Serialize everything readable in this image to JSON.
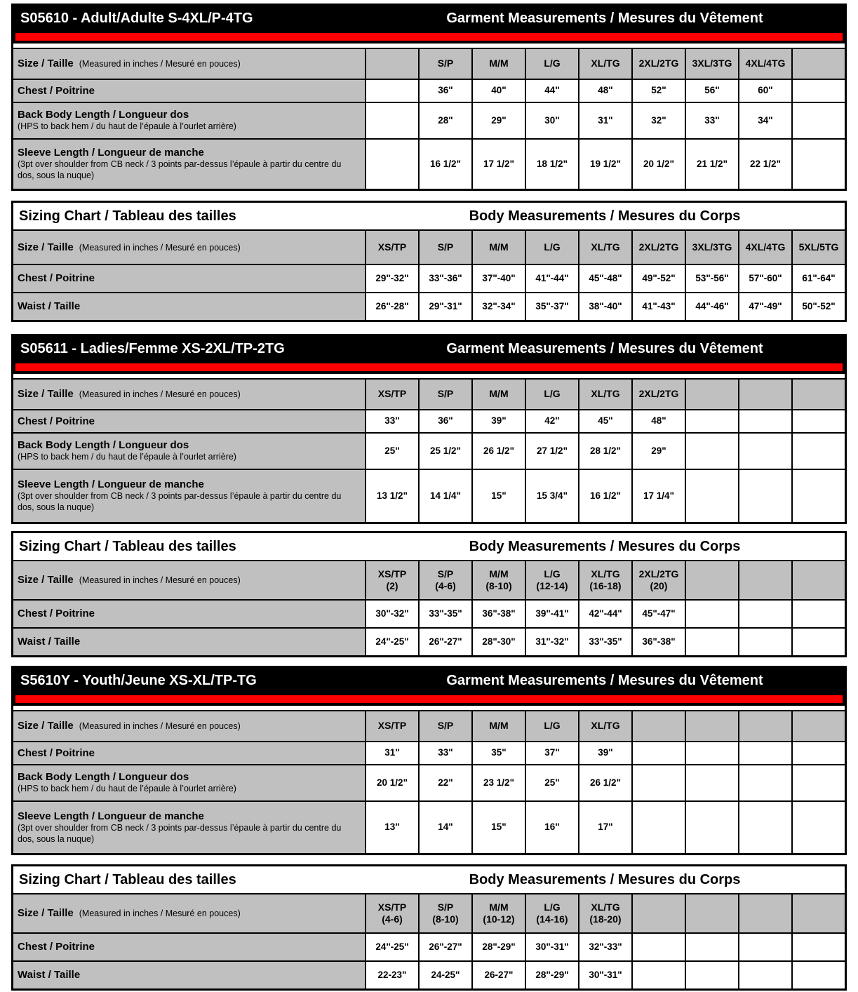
{
  "colors": {
    "header_bg": "#000000",
    "header_text": "#ffffff",
    "accent_red": "#ff0000",
    "cell_gray": "#c0c0c0",
    "cell_white": "#ffffff",
    "border": "#000000"
  },
  "tables": [
    {
      "kind": "garment",
      "name": "adult-garment",
      "title": "S05610 - Adult/Adulte S-4XL/P-4TG",
      "header_right": "Garment Measurements / Mesures du Vêtement",
      "size_label": "Size / Taille",
      "size_note": "(Measured in inches / Mesuré en pouces)",
      "columns": [
        "",
        "S/P",
        "M/M",
        "L/G",
        "XL/TG",
        "2XL/2TG",
        "3XL/3TG",
        "4XL/4TG",
        ""
      ],
      "rows": [
        {
          "type": "chest",
          "label": "Chest / Poitrine",
          "note": "",
          "values": [
            "",
            "36\"",
            "40\"",
            "44\"",
            "48\"",
            "52\"",
            "56\"",
            "60\"",
            ""
          ]
        },
        {
          "type": "bbl",
          "label": "Back Body Length / Longueur dos",
          "note": "(HPS to back hem / du haut de l’épaule à l’ourlet arrière)",
          "values": [
            "",
            "28\"",
            "29\"",
            "30\"",
            "31\"",
            "32\"",
            "33\"",
            "34\"",
            ""
          ]
        },
        {
          "type": "sleeve",
          "label": "Sleeve Length / Longueur de manche",
          "note": "(3pt over shoulder from CB neck / 3 points par-dessus l’épaule à partir du centre du dos, sous la nuque)",
          "values": [
            "",
            "16 1/2\"",
            "17 1/2\"",
            "18 1/2\"",
            "19 1/2\"",
            "20 1/2\"",
            "21 1/2\"",
            "22 1/2\"",
            ""
          ]
        }
      ]
    },
    {
      "kind": "body",
      "name": "adult-body",
      "title": "Sizing Chart / Tableau des tailles",
      "header_right": "Body Measurements / Mesures du Corps",
      "size_label": "Size / Taille",
      "size_note": "(Measured in inches / Mesuré en pouces)",
      "columns": [
        "XS/TP",
        "S/P",
        "M/M",
        "L/G",
        "XL/TG",
        "2XL/2TG",
        "3XL/3TG",
        "4XL/4TG",
        "5XL/5TG"
      ],
      "rows": [
        {
          "type": "chest",
          "label": "Chest / Poitrine",
          "note": "",
          "values": [
            "29\"-32\"",
            "33\"-36\"",
            "37\"-40\"",
            "41\"-44\"",
            "45\"-48\"",
            "49\"-52\"",
            "53\"-56\"",
            "57\"-60\"",
            "61\"-64\""
          ]
        },
        {
          "type": "waist",
          "label": "Waist / Taille",
          "note": "",
          "values": [
            "26\"-28\"",
            "29\"-31\"",
            "32\"-34\"",
            "35\"-37\"",
            "38\"-40\"",
            "41\"-43\"",
            "44\"-46\"",
            "47\"-49\"",
            "50\"-52\""
          ]
        }
      ]
    },
    {
      "kind": "garment",
      "name": "ladies-garment",
      "title": "S05611 - Ladies/Femme XS-2XL/TP-2TG",
      "header_right": "Garment Measurements / Mesures du Vêtement",
      "size_label": "Size / Taille",
      "size_note": "(Measured in inches / Mesuré en pouces)",
      "columns": [
        "XS/TP",
        "S/P",
        "M/M",
        "L/G",
        "XL/TG",
        "2XL/2TG",
        "",
        "",
        ""
      ],
      "rows": [
        {
          "type": "chest",
          "label": "Chest / Poitrine",
          "note": "",
          "values": [
            "33\"",
            "36\"",
            "39\"",
            "42\"",
            "45\"",
            "48\"",
            "",
            "",
            ""
          ]
        },
        {
          "type": "bbl",
          "label": "Back Body Length / Longueur dos",
          "note": "(HPS to back hem / du haut de l’épaule à l’ourlet arrière)",
          "values": [
            "25\"",
            "25 1/2\"",
            "26 1/2\"",
            "27 1/2\"",
            "28 1/2\"",
            "29\"",
            "",
            "",
            ""
          ]
        },
        {
          "type": "sleeve",
          "label": "Sleeve Length / Longueur de manche",
          "note": "(3pt over shoulder from CB neck / 3 points par-dessus l’épaule à partir du centre du dos, sous la nuque)",
          "values": [
            "13 1/2\"",
            "14 1/4\"",
            "15\"",
            "15 3/4\"",
            "16 1/2\"",
            "17 1/4\"",
            "",
            "",
            ""
          ]
        }
      ]
    },
    {
      "kind": "body",
      "name": "ladies-body",
      "title": "Sizing Chart / Tableau des tailles",
      "header_right": "Body Measurements / Mesures du Corps",
      "size_label": "Size / Taille",
      "size_note": "(Measured in inches / Mesuré en pouces)",
      "columns": [
        "XS/TP",
        "S/P",
        "M/M",
        "L/G",
        "XL/TG",
        "2XL/2TG",
        "",
        "",
        ""
      ],
      "columns_sub": [
        "(2)",
        "(4-6)",
        "(8-10)",
        "(12-14)",
        "(16-18)",
        "(20)",
        "",
        "",
        ""
      ],
      "rows": [
        {
          "type": "chest",
          "label": "Chest / Poitrine",
          "note": "",
          "values": [
            "30\"-32\"",
            "33\"-35\"",
            "36\"-38\"",
            "39\"-41\"",
            "42\"-44\"",
            "45\"-47\"",
            "",
            "",
            ""
          ]
        },
        {
          "type": "waist",
          "label": "Waist / Taille",
          "note": "",
          "values": [
            "24\"-25\"",
            "26\"-27\"",
            "28\"-30\"",
            "31\"-32\"",
            "33\"-35\"",
            "36\"-38\"",
            "",
            "",
            ""
          ]
        }
      ]
    },
    {
      "kind": "garment",
      "name": "youth-garment",
      "title": "S5610Y - Youth/Jeune XS-XL/TP-TG",
      "header_right": "Garment Measurements / Mesures du Vêtement",
      "size_label": "Size / Taille",
      "size_note": "(Measured in inches / Mesuré en pouces)",
      "columns": [
        "XS/TP",
        "S/P",
        "M/M",
        "L/G",
        "XL/TG",
        "",
        "",
        "",
        ""
      ],
      "rows": [
        {
          "type": "chest",
          "label": "Chest / Poitrine",
          "note": "",
          "values": [
            "31\"",
            "33\"",
            "35\"",
            "37\"",
            "39\"",
            "",
            "",
            "",
            ""
          ]
        },
        {
          "type": "bbl",
          "label": "Back Body Length / Longueur dos",
          "note": "(HPS to back hem / du haut de l’épaule à l’ourlet arrière)",
          "values": [
            "20 1/2\"",
            "22\"",
            "23 1/2\"",
            "25\"",
            "26 1/2\"",
            "",
            "",
            "",
            ""
          ]
        },
        {
          "type": "sleeve",
          "label": "Sleeve Length / Longueur de manche",
          "note": "(3pt over shoulder from CB neck / 3 points par-dessus l’épaule à partir du centre du dos, sous la nuque)",
          "values": [
            "13\"",
            "14\"",
            "15\"",
            "16\"",
            "17\"",
            "",
            "",
            "",
            ""
          ]
        }
      ]
    },
    {
      "kind": "body",
      "name": "youth-body",
      "title": "Sizing Chart / Tableau des tailles",
      "header_right": "Body Measurements / Mesures du Corps",
      "size_label": "Size / Taille",
      "size_note": "(Measured in inches / Mesuré en pouces)",
      "columns": [
        "XS/TP",
        "S/P",
        "M/M",
        "L/G",
        "XL/TG",
        "",
        "",
        "",
        ""
      ],
      "columns_sub": [
        "(4-6)",
        "(8-10)",
        "(10-12)",
        "(14-16)",
        "(18-20)",
        "",
        "",
        "",
        ""
      ],
      "rows": [
        {
          "type": "chest",
          "label": "Chest / Poitrine",
          "note": "",
          "values": [
            "24\"-25\"",
            "26\"-27\"",
            "28\"-29\"",
            "30\"-31\"",
            "32\"-33\"",
            "",
            "",
            "",
            ""
          ]
        },
        {
          "type": "waist",
          "label": "Waist / Taille",
          "note": "",
          "values": [
            "22-23\"",
            "24-25\"",
            "26-27\"",
            "28\"-29\"",
            "30\"-31\"",
            "",
            "",
            "",
            ""
          ]
        }
      ]
    }
  ]
}
